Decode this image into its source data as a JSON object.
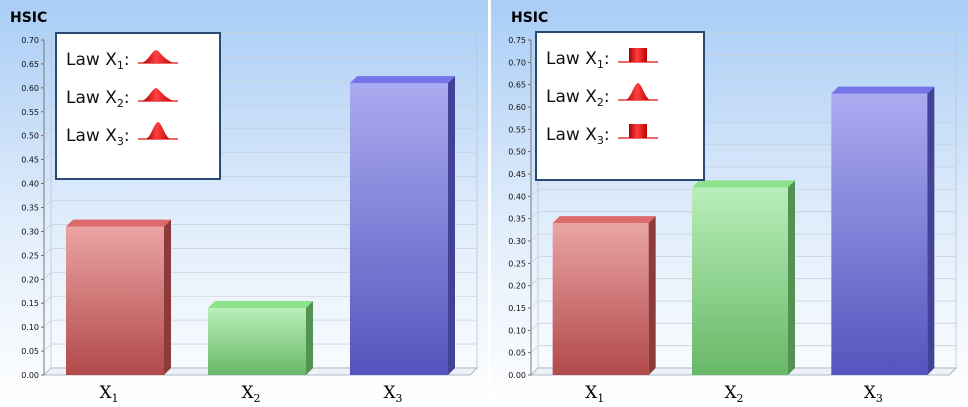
{
  "chart_data": [
    {
      "type": "bar",
      "title": "HSIC",
      "categories": [
        "X",
        "X",
        "X"
      ],
      "category_subscripts": [
        "1",
        "2",
        "3"
      ],
      "values": [
        0.31,
        0.14,
        0.61
      ],
      "ylim": [
        0,
        0.7
      ],
      "yticks": [
        "0.00",
        "0.05",
        "0.10",
        "0.15",
        "0.20",
        "0.25",
        "0.30",
        "0.35",
        "0.40",
        "0.45",
        "0.50",
        "0.55",
        "0.60",
        "0.65",
        "0.70"
      ],
      "grid": true,
      "legend": {
        "placement": "top-left",
        "entries": [
          {
            "prefix": "Law X",
            "sub": "1",
            "suffix": ":",
            "icon": "gaussian-skewed-icon"
          },
          {
            "prefix": "Law X",
            "sub": "2",
            "suffix": ":",
            "icon": "gaussian-skewed-icon"
          },
          {
            "prefix": "Law X",
            "sub": "3",
            "suffix": ":",
            "icon": "gaussian-narrow-icon"
          }
        ]
      },
      "colors": [
        "#d9595a",
        "#7fe07f",
        "#6666e6"
      ]
    },
    {
      "type": "bar",
      "title": "HSIC",
      "categories": [
        "X",
        "X",
        "X"
      ],
      "category_subscripts": [
        "1",
        "2",
        "3"
      ],
      "values": [
        0.34,
        0.42,
        0.63
      ],
      "ylim": [
        0,
        0.75
      ],
      "yticks": [
        "0.00",
        "0.05",
        "0.10",
        "0.15",
        "0.20",
        "0.25",
        "0.30",
        "0.35",
        "0.40",
        "0.45",
        "0.50",
        "0.55",
        "0.60",
        "0.65",
        "0.70",
        "0.75"
      ],
      "grid": true,
      "legend": {
        "placement": "top-left",
        "entries": [
          {
            "prefix": "Law X",
            "sub": "1",
            "suffix": ":",
            "icon": "uniform-icon"
          },
          {
            "prefix": "Law X",
            "sub": "2",
            "suffix": ":",
            "icon": "gaussian-narrow-icon"
          },
          {
            "prefix": "Law X",
            "sub": "3",
            "suffix": ":",
            "icon": "uniform-icon"
          }
        ]
      },
      "colors": [
        "#d9595a",
        "#7fe07f",
        "#6666e6"
      ]
    }
  ]
}
